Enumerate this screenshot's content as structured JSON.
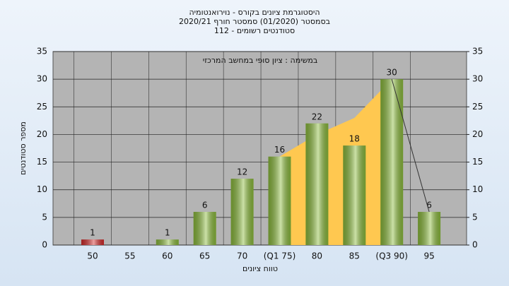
{
  "chart_data": {
    "type": "bar",
    "title": "היסטוגרמת ציונים בקורס - נוירואנטומיה",
    "subtitle": "בסמסטר  (01/2020)  סמסטר חורף 2020/21",
    "subtitle2": "סטודנטים רשומים - 112",
    "annotation": "במשימה : ציון סופי במחשב המרכזי",
    "x_label": "טווח ציונים",
    "y_label": "מספר סטודנטים",
    "categories": [
      "50",
      "55",
      "60",
      "65",
      "70",
      "(Q1 75)",
      "80",
      "85",
      "(Q3 90)",
      "95"
    ],
    "values": [
      1,
      null,
      1,
      6,
      12,
      16,
      22,
      18,
      30,
      6
    ],
    "colors": [
      "#d42a2a",
      "#8cbc3c",
      "#8cbc3c",
      "#8cbc3c",
      "#8cbc3c",
      "#8cbc3c",
      "#8cbc3c",
      "#8cbc3c",
      "#8cbc3c",
      "#8cbc3c"
    ],
    "area": {
      "color": "#ffc850",
      "values": [
        null,
        null,
        null,
        null,
        null,
        16,
        20,
        23,
        30,
        null
      ]
    },
    "line": {
      "color": "#333333",
      "values": [
        null,
        null,
        null,
        null,
        null,
        null,
        null,
        null,
        30,
        6
      ]
    },
    "ylim": [
      0,
      35
    ],
    "yticks": [
      0,
      5,
      10,
      15,
      20,
      25,
      30,
      35
    ],
    "y2lim": [
      0,
      35
    ],
    "y2ticks": [
      0,
      5,
      10,
      15,
      20,
      25,
      30,
      35
    ],
    "grid": true
  }
}
